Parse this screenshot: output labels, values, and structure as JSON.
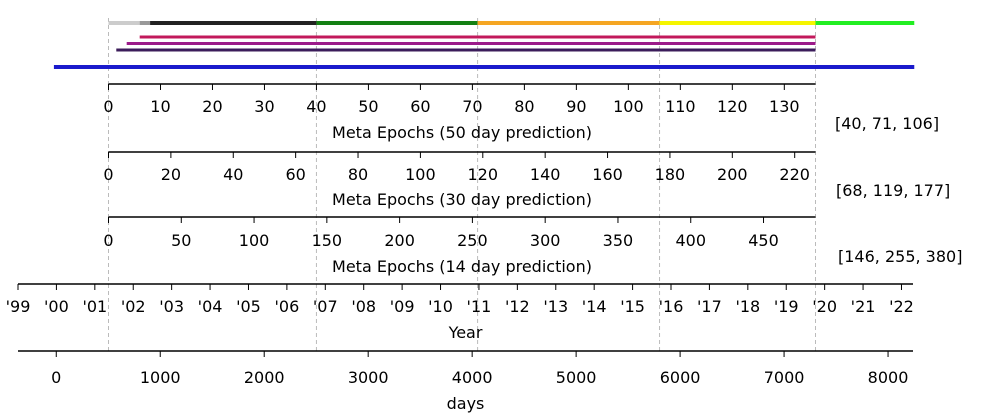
{
  "chart_data": {
    "type": "timeline",
    "bars": [
      {
        "name": "",
        "segments": [
          {
            "start_day": 0,
            "end_day": 6,
            "color": "#cccccc"
          },
          {
            "start_day": 6,
            "end_day": 8,
            "color": "#999999"
          },
          {
            "start_day": 8,
            "end_day": 40,
            "color": "#222222"
          },
          {
            "start_day": 40,
            "end_day": 71,
            "color": "#138013"
          },
          {
            "start_day": 71,
            "end_day": 106,
            "color": "#f5a623"
          },
          {
            "start_day": 106,
            "end_day": 136,
            "color": "#f5f500"
          },
          {
            "start_day": 136,
            "end_day": 155,
            "color": "#22ee22"
          }
        ]
      },
      {
        "name": "",
        "segments": [
          {
            "start_day": 6,
            "end_day": 136,
            "color": "#c2185b"
          }
        ]
      },
      {
        "name": "",
        "segments": [
          {
            "start_day": 3.5,
            "end_day": 136,
            "color": "#9c1b8a"
          }
        ]
      },
      {
        "name": "",
        "segments": [
          {
            "start_day": 1.5,
            "end_day": 136,
            "color": "#3b1c5a"
          }
        ]
      },
      {
        "name": "",
        "segments": [
          {
            "start_day": -10.5,
            "end_day": 155,
            "color": "#1a1acc"
          }
        ]
      }
    ],
    "axes": [
      {
        "title": "Meta Epochs (50 day prediction)",
        "ticks": [
          0,
          10,
          20,
          30,
          40,
          50,
          60,
          70,
          80,
          90,
          100,
          110,
          120,
          130
        ],
        "range": [
          0,
          136
        ],
        "annotation": "[40, 71, 106]"
      },
      {
        "title": "Meta Epochs (30 day prediction)",
        "ticks": [
          0,
          20,
          40,
          60,
          80,
          100,
          120,
          140,
          160,
          180,
          200,
          220
        ],
        "range": [
          0,
          226.67
        ],
        "annotation": "[68, 119, 177]"
      },
      {
        "title": "Meta Epochs (14 day prediction)",
        "ticks": [
          0,
          50,
          100,
          150,
          200,
          250,
          300,
          350,
          400,
          450
        ],
        "range": [
          0,
          485.71
        ],
        "annotation": "[146, 255, 380]"
      },
      {
        "title": "Year",
        "ticks": [
          "'99",
          "'00",
          "'01",
          "'02",
          "'03",
          "'04",
          "'05",
          "'06",
          "'07",
          "'08",
          "'09",
          "'10",
          "'11",
          "'12",
          "'13",
          "'14",
          "'15",
          "'16",
          "'17",
          "'18",
          "'19",
          "'20",
          "'21",
          "'22"
        ],
        "range": [
          1999,
          2022.3
        ]
      },
      {
        "title": "days",
        "ticks": [
          0,
          1000,
          2000,
          3000,
          4000,
          5000,
          6000,
          7000,
          8000
        ],
        "range": [
          -368,
          8240
        ]
      }
    ],
    "reference_lines_day": [
      0,
      40,
      71,
      106,
      136
    ],
    "grid": false
  }
}
